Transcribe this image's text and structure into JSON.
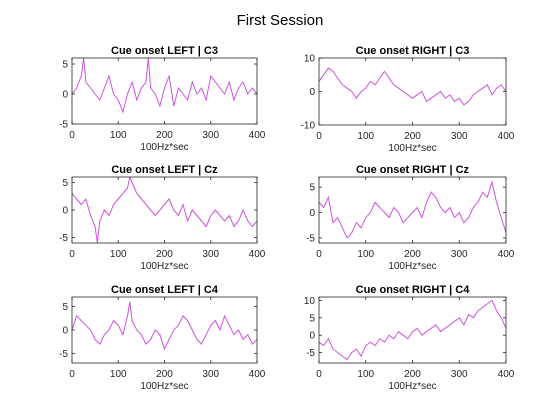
{
  "figure": {
    "title": "First Session"
  },
  "chart_data": [
    {
      "type": "line",
      "title": "Cue onset LEFT | C3",
      "xlabel": "100Hz*sec",
      "xlim": [
        0,
        400
      ],
      "ylim": [
        -5,
        6
      ],
      "xticks": [
        0,
        100,
        200,
        300,
        400
      ],
      "yticks": [
        -5,
        0,
        5
      ],
      "color": "#cc55dd",
      "series": [
        {
          "x": [
            0,
            10,
            20,
            25,
            30,
            40,
            50,
            60,
            70,
            80,
            90,
            100,
            110,
            120,
            130,
            140,
            150,
            160,
            165,
            170,
            180,
            190,
            200,
            210,
            220,
            230,
            240,
            250,
            260,
            270,
            280,
            290,
            300,
            310,
            320,
            330,
            340,
            350,
            360,
            370,
            380,
            390,
            400
          ],
          "y": [
            0,
            1,
            3,
            6,
            2,
            1,
            0,
            -1,
            1,
            3,
            0,
            -1,
            -3,
            0,
            2,
            -1,
            1,
            2,
            6,
            1,
            0,
            -2,
            1,
            3,
            -2,
            1,
            0,
            -1,
            2,
            0,
            1,
            -1,
            3,
            2,
            1,
            0,
            2,
            -1,
            1,
            2,
            0,
            1,
            0
          ]
        }
      ]
    },
    {
      "type": "line",
      "title": "Cue onset RIGHT | C3",
      "xlabel": "100Hz*sec",
      "xlim": [
        0,
        400
      ],
      "ylim": [
        -10,
        10
      ],
      "xticks": [
        0,
        100,
        200,
        300,
        400
      ],
      "yticks": [
        -10,
        0,
        10
      ],
      "color": "#cc55dd",
      "series": [
        {
          "x": [
            0,
            10,
            20,
            30,
            40,
            50,
            60,
            70,
            80,
            90,
            100,
            110,
            120,
            130,
            140,
            150,
            160,
            170,
            180,
            190,
            200,
            210,
            220,
            230,
            240,
            250,
            260,
            270,
            280,
            290,
            300,
            310,
            320,
            330,
            340,
            350,
            360,
            370,
            380,
            390,
            400
          ],
          "y": [
            3,
            5,
            7,
            6,
            4,
            2,
            1,
            0,
            -2,
            0,
            1,
            3,
            2,
            4,
            6,
            4,
            2,
            1,
            0,
            -1,
            -2,
            -1,
            0,
            -3,
            -2,
            -1,
            0,
            -2,
            -1,
            -3,
            -2,
            -4,
            -3,
            -1,
            0,
            1,
            2,
            -1,
            1,
            2,
            0
          ]
        }
      ]
    },
    {
      "type": "line",
      "title": "Cue onset LEFT | Cz",
      "xlabel": "100Hz*sec",
      "xlim": [
        0,
        400
      ],
      "ylim": [
        -6,
        6
      ],
      "xticks": [
        0,
        100,
        200,
        300,
        400
      ],
      "yticks": [
        -5,
        0,
        5
      ],
      "color": "#cc55dd",
      "series": [
        {
          "x": [
            0,
            10,
            20,
            30,
            40,
            50,
            55,
            60,
            70,
            80,
            90,
            100,
            110,
            120,
            125,
            130,
            140,
            150,
            160,
            170,
            180,
            190,
            200,
            210,
            220,
            230,
            240,
            250,
            260,
            270,
            280,
            290,
            300,
            310,
            320,
            330,
            340,
            350,
            360,
            370,
            380,
            390,
            400
          ],
          "y": [
            3,
            2,
            1,
            2,
            -1,
            -3,
            -6,
            -2,
            0,
            -1,
            1,
            2,
            3,
            4,
            6,
            5,
            3,
            2,
            1,
            0,
            -1,
            0,
            1,
            2,
            0,
            -1,
            1,
            -2,
            0,
            -1,
            -2,
            -3,
            -1,
            0,
            -1,
            -2,
            -1,
            -3,
            -2,
            0,
            -2,
            -3,
            -2
          ]
        }
      ]
    },
    {
      "type": "line",
      "title": "Cue onset RIGHT | Cz",
      "xlabel": "100Hz*sec",
      "xlim": [
        0,
        400
      ],
      "ylim": [
        -6,
        7
      ],
      "xticks": [
        0,
        100,
        200,
        300,
        400
      ],
      "yticks": [
        -5,
        0,
        5
      ],
      "color": "#cc55dd",
      "series": [
        {
          "x": [
            0,
            10,
            20,
            30,
            40,
            50,
            60,
            70,
            80,
            90,
            100,
            110,
            120,
            130,
            140,
            150,
            160,
            170,
            180,
            190,
            200,
            210,
            220,
            230,
            240,
            250,
            260,
            270,
            280,
            290,
            300,
            310,
            320,
            330,
            340,
            350,
            360,
            370,
            380,
            390,
            400
          ],
          "y": [
            2,
            1,
            3,
            -2,
            -1,
            -3,
            -5,
            -4,
            -2,
            -3,
            -1,
            0,
            2,
            1,
            0,
            -1,
            1,
            0,
            -2,
            -1,
            0,
            1,
            -1,
            2,
            4,
            3,
            1,
            0,
            1,
            -1,
            0,
            -2,
            -1,
            1,
            2,
            4,
            3,
            6,
            2,
            -1,
            -4
          ]
        }
      ]
    },
    {
      "type": "line",
      "title": "Cue onset LEFT | C4",
      "xlabel": "100Hz*sec",
      "xlim": [
        0,
        400
      ],
      "ylim": [
        -7,
        7
      ],
      "xticks": [
        0,
        100,
        200,
        300,
        400
      ],
      "yticks": [
        -5,
        0,
        5
      ],
      "color": "#cc55dd",
      "series": [
        {
          "x": [
            0,
            10,
            20,
            30,
            40,
            50,
            60,
            70,
            80,
            90,
            100,
            110,
            120,
            125,
            130,
            140,
            150,
            160,
            170,
            180,
            190,
            200,
            210,
            220,
            230,
            240,
            250,
            260,
            270,
            280,
            290,
            300,
            310,
            320,
            330,
            340,
            350,
            360,
            370,
            380,
            390,
            400
          ],
          "y": [
            0,
            3,
            2,
            1,
            0,
            -2,
            -3,
            -1,
            0,
            2,
            1,
            -1,
            3,
            6,
            2,
            0,
            -1,
            -3,
            -2,
            0,
            -1,
            -4,
            -2,
            0,
            1,
            3,
            2,
            0,
            -2,
            -3,
            -1,
            1,
            2,
            0,
            3,
            1,
            -1,
            0,
            -2,
            -1,
            -3,
            -2
          ]
        }
      ]
    },
    {
      "type": "line",
      "title": "Cue onset RIGHT | C4",
      "xlabel": "100Hz*sec",
      "xlim": [
        0,
        400
      ],
      "ylim": [
        -8,
        11
      ],
      "xticks": [
        0,
        100,
        200,
        300,
        400
      ],
      "yticks": [
        -5,
        0,
        5,
        10
      ],
      "color": "#cc55dd",
      "series": [
        {
          "x": [
            0,
            10,
            20,
            30,
            40,
            50,
            60,
            70,
            80,
            90,
            100,
            110,
            120,
            130,
            140,
            150,
            160,
            170,
            180,
            190,
            200,
            210,
            220,
            230,
            240,
            250,
            260,
            270,
            280,
            290,
            300,
            310,
            320,
            330,
            340,
            350,
            360,
            370,
            380,
            390,
            400
          ],
          "y": [
            -2,
            -3,
            -1,
            -4,
            -5,
            -6,
            -7,
            -5,
            -4,
            -6,
            -3,
            -2,
            -3,
            -1,
            -2,
            0,
            -1,
            1,
            0,
            -1,
            1,
            2,
            0,
            1,
            2,
            3,
            1,
            2,
            3,
            4,
            5,
            3,
            6,
            5,
            7,
            8,
            9,
            10,
            7,
            5,
            2
          ]
        }
      ]
    }
  ]
}
